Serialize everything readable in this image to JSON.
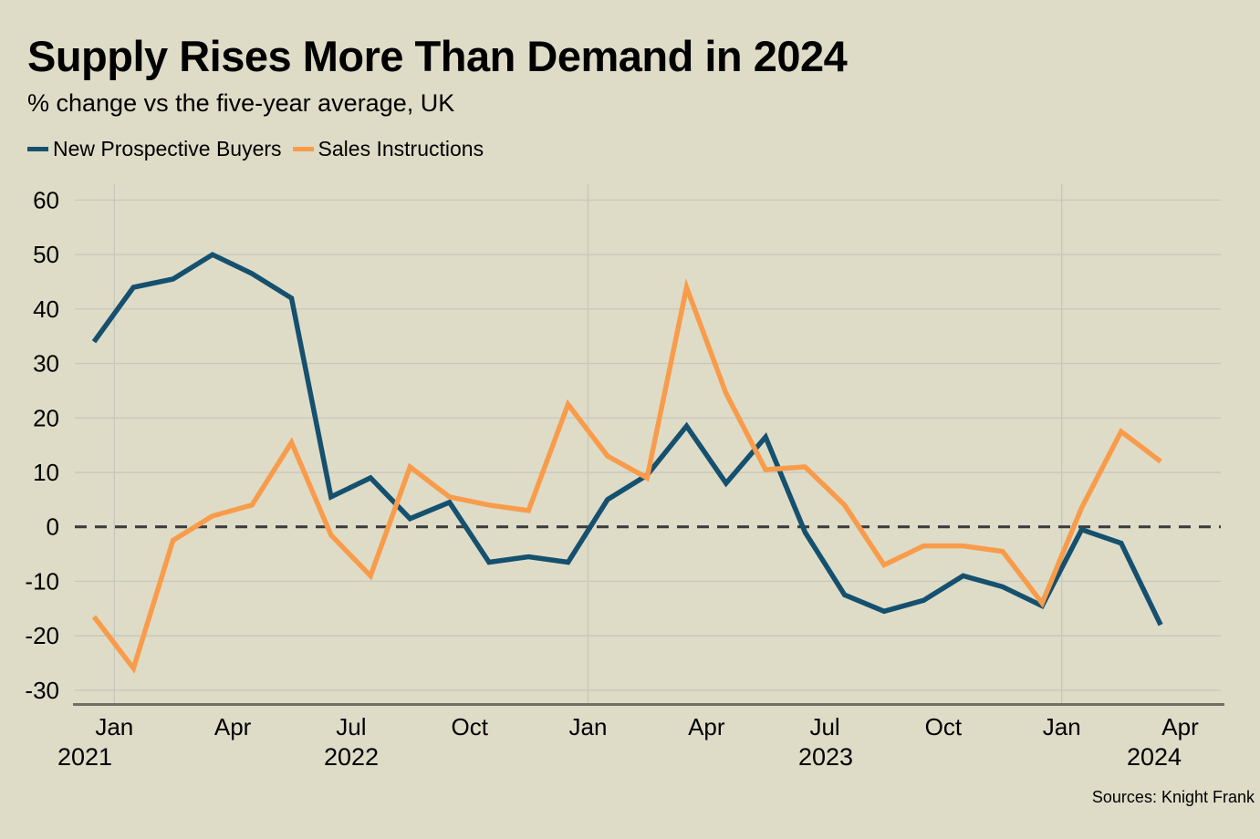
{
  "header": {
    "title": "Supply Rises More Than Demand in 2024",
    "subtitle": "% change vs the five-year average, UK"
  },
  "footer": {
    "sources": "Sources: Knight Frank"
  },
  "colors": {
    "background": "#dedcc7",
    "gridline": "#c9c8bc",
    "zero_line": "#3d3d3d",
    "axis_line": "#6f6f65",
    "text": "#000000",
    "series_buyers": "#15506f",
    "series_instructions": "#f89c4c"
  },
  "chart_data": {
    "type": "line",
    "title": "Supply Rises More Than Demand in 2024",
    "subtitle": "% change vs the five-year average, UK",
    "ylabel": "% change vs the five-year average",
    "ylim": [
      -32,
      63
    ],
    "yticks": [
      60,
      50,
      40,
      30,
      20,
      10,
      0,
      -10,
      -20,
      -30
    ],
    "zero_line": "dashed",
    "grid": "on",
    "legend_position": "top-left",
    "x_tick_labels": [
      "Jan",
      "Apr",
      "Jul",
      "Oct",
      "Jan",
      "Apr",
      "Jul",
      "Oct",
      "Jan",
      "Apr"
    ],
    "x_year_labels": [
      {
        "label": "2021",
        "anchor_tick": 0
      },
      {
        "label": "2022",
        "anchor_tick": 2
      },
      {
        "label": "2023",
        "anchor_tick": 6
      },
      {
        "label": "2024",
        "anchor_tick": 9
      }
    ],
    "points_per_tick_interval": 3,
    "series": [
      {
        "name": "New Prospective Buyers",
        "color": "#15506f",
        "values": [
          34,
          44,
          45.5,
          50,
          46.5,
          42,
          5.5,
          9,
          1.5,
          4.5,
          -6.5,
          -5.5,
          -6.5,
          5,
          9.5,
          18.5,
          8,
          16.5,
          -1,
          -12.5,
          -15.5,
          -13.5,
          -9,
          -11,
          -14.5,
          -0.5,
          -3,
          -18
        ]
      },
      {
        "name": "Sales Instructions",
        "color": "#f89c4c",
        "values": [
          -16.5,
          -26,
          -2.5,
          2,
          4,
          15.5,
          -1.5,
          -9,
          11,
          5.5,
          4,
          3,
          22.5,
          13,
          9,
          44,
          24.5,
          10.5,
          11,
          4,
          -7,
          -3.5,
          -3.5,
          -4.5,
          -14,
          3.5,
          17.5,
          12
        ]
      }
    ]
  }
}
